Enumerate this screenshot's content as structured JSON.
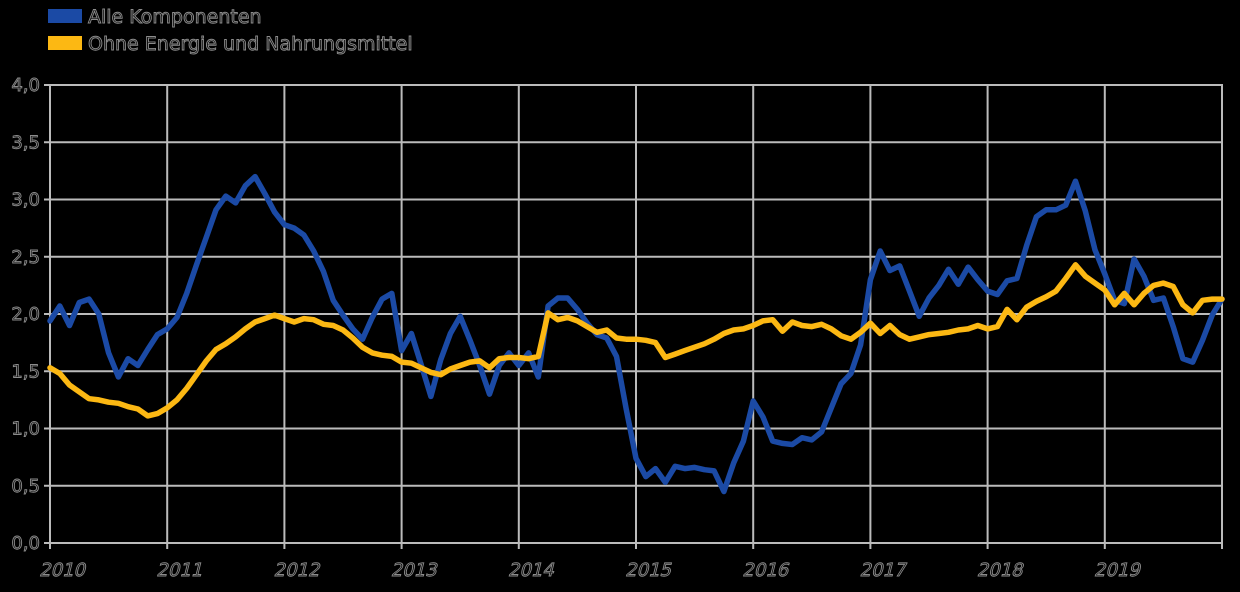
{
  "background_color": "#000000",
  "legend": {
    "items": [
      {
        "label": "Alle Komponenten",
        "color": "#1b4aa5"
      },
      {
        "label": "Ohne Energie und Nahrungsmittel",
        "color": "#fcb813"
      }
    ]
  },
  "chart_data": {
    "type": "line",
    "title": "",
    "x_start": "2010-01",
    "x_end": "2020-01",
    "x_tick_labels": [
      "2010",
      "2011",
      "2012",
      "2013",
      "2014",
      "2015",
      "2016",
      "2017",
      "2018",
      "2019"
    ],
    "y_tick_labels": [
      "0,0",
      "0,5",
      "1,0",
      "1,5",
      "2,0",
      "2,5",
      "3,0",
      "3,5",
      "4,0"
    ],
    "ylim": [
      0,
      4
    ],
    "grid": true,
    "grid_color": "#bbbbbb",
    "legend_position": "top-left",
    "series": [
      {
        "name": "Alle Komponenten",
        "color": "#1b4aa5",
        "values": [
          1.94,
          2.07,
          1.9,
          2.1,
          2.13,
          2.0,
          1.66,
          1.45,
          1.61,
          1.55,
          1.69,
          1.82,
          1.87,
          1.97,
          2.18,
          2.43,
          2.67,
          2.91,
          3.03,
          2.97,
          3.12,
          3.2,
          3.05,
          2.89,
          2.78,
          2.75,
          2.69,
          2.55,
          2.37,
          2.12,
          1.99,
          1.87,
          1.78,
          1.97,
          2.13,
          2.18,
          1.68,
          1.83,
          1.56,
          1.28,
          1.6,
          1.83,
          1.98,
          1.77,
          1.55,
          1.3,
          1.55,
          1.66,
          1.55,
          1.66,
          1.45,
          2.07,
          2.14,
          2.14,
          2.04,
          1.92,
          1.82,
          1.79,
          1.63,
          1.17,
          0.74,
          0.58,
          0.65,
          0.53,
          0.67,
          0.65,
          0.66,
          0.64,
          0.63,
          0.45,
          0.7,
          0.89,
          1.24,
          1.1,
          0.89,
          0.87,
          0.86,
          0.92,
          0.9,
          0.97,
          1.18,
          1.39,
          1.48,
          1.73,
          2.3,
          2.55,
          2.38,
          2.42,
          2.2,
          1.98,
          2.14,
          2.25,
          2.39,
          2.26,
          2.41,
          2.3,
          2.2,
          2.17,
          2.29,
          2.31,
          2.6,
          2.85,
          2.91,
          2.91,
          2.95,
          3.16,
          2.9,
          2.56,
          2.35,
          2.12,
          2.09,
          2.48,
          2.33,
          2.12,
          2.14,
          1.89,
          1.61,
          1.58,
          1.77,
          1.99,
          2.13
        ]
      },
      {
        "name": "Ohne Energie und Nahrungsmittel",
        "color": "#fcb813",
        "values": [
          1.53,
          1.48,
          1.38,
          1.32,
          1.26,
          1.25,
          1.23,
          1.22,
          1.19,
          1.17,
          1.11,
          1.13,
          1.18,
          1.25,
          1.35,
          1.47,
          1.59,
          1.69,
          1.74,
          1.8,
          1.87,
          1.93,
          1.96,
          1.99,
          1.96,
          1.93,
          1.96,
          1.95,
          1.91,
          1.9,
          1.86,
          1.79,
          1.71,
          1.66,
          1.64,
          1.63,
          1.58,
          1.57,
          1.53,
          1.49,
          1.47,
          1.52,
          1.55,
          1.58,
          1.59,
          1.53,
          1.61,
          1.62,
          1.62,
          1.61,
          1.63,
          2.01,
          1.95,
          1.97,
          1.94,
          1.89,
          1.84,
          1.86,
          1.79,
          1.78,
          1.78,
          1.77,
          1.75,
          1.62,
          1.65,
          1.68,
          1.71,
          1.74,
          1.78,
          1.83,
          1.86,
          1.87,
          1.9,
          1.94,
          1.95,
          1.85,
          1.93,
          1.9,
          1.89,
          1.91,
          1.87,
          1.81,
          1.78,
          1.84,
          1.92,
          1.83,
          1.9,
          1.82,
          1.78,
          1.8,
          1.82,
          1.83,
          1.84,
          1.86,
          1.87,
          1.9,
          1.87,
          1.89,
          2.04,
          1.95,
          2.06,
          2.11,
          2.15,
          2.2,
          2.31,
          2.43,
          2.33,
          2.27,
          2.21,
          2.08,
          2.18,
          2.08,
          2.18,
          2.25,
          2.27,
          2.24,
          2.08,
          2.01,
          2.12,
          2.13,
          2.13
        ]
      }
    ]
  }
}
